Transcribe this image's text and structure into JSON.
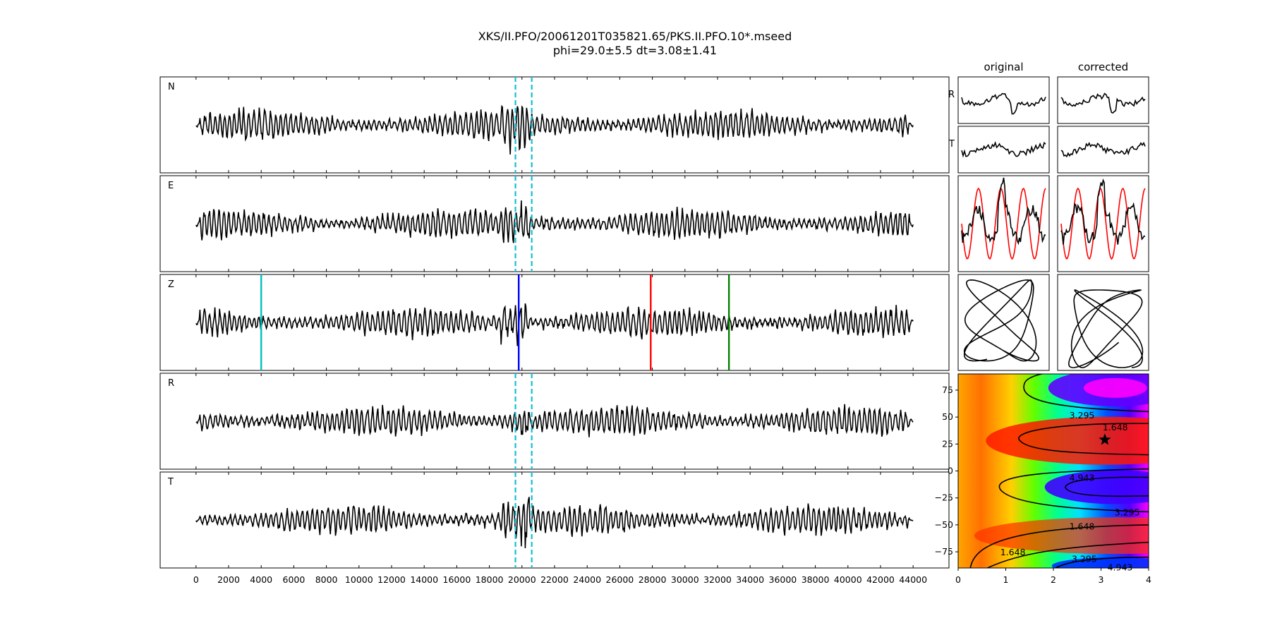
{
  "title_line1": "XKS/II.PFO/20061201T035821.65/PKS.II.PFO.10*.mseed",
  "title_line2": "phi=29.0±5.5 dt=3.08±1.41",
  "chart_data": [
    {
      "type": "line",
      "panel": "traces",
      "series_labels": [
        "N",
        "E",
        "Z",
        "R",
        "T"
      ],
      "x_ticks": [
        0,
        2000,
        4000,
        6000,
        8000,
        10000,
        12000,
        14000,
        16000,
        18000,
        20000,
        22000,
        24000,
        26000,
        28000,
        30000,
        32000,
        34000,
        36000,
        38000,
        40000,
        42000,
        44000
      ],
      "xlim": [
        -2200,
        46200
      ],
      "signal_range": [
        0,
        44000
      ],
      "window_lines": {
        "color": "#17becf",
        "style": "dashed",
        "x": [
          19600,
          20600
        ],
        "panels": [
          "N",
          "E",
          "R",
          "T"
        ]
      },
      "phase_markers": [
        {
          "x": 4000,
          "color": "#00bfbf"
        },
        {
          "x": 19800,
          "color": "#0000ff"
        },
        {
          "x": 27900,
          "color": "#ff0000"
        },
        {
          "x": 32700,
          "color": "#008000"
        }
      ],
      "trace_color": "#000000"
    },
    {
      "type": "line",
      "panel": "particle-motion",
      "column_titles": [
        "original",
        "corrected"
      ],
      "row_labels": [
        "R",
        "T"
      ],
      "colors": {
        "primary": "#000000",
        "overlay": "#ff0000"
      }
    },
    {
      "type": "heatmap",
      "panel": "error-surface",
      "x_ticks": [
        0,
        1,
        2,
        3,
        4
      ],
      "y_ticks": [
        75,
        50,
        25,
        0,
        -25,
        -50,
        -75
      ],
      "xlim": [
        0,
        4
      ],
      "ylim": [
        -90,
        90
      ],
      "colormap": "gist_rainbow",
      "contour_labels": [
        {
          "text": "3.295",
          "dt": 2.6,
          "phi": 52
        },
        {
          "text": "1.648",
          "dt": 3.3,
          "phi": 41
        },
        {
          "text": "4.943",
          "dt": 2.6,
          "phi": -6
        },
        {
          "text": "3.295",
          "dt": 3.55,
          "phi": -38
        },
        {
          "text": "1.648",
          "dt": 2.6,
          "phi": -51
        },
        {
          "text": "1.648",
          "dt": 1.15,
          "phi": -75
        },
        {
          "text": "3.295",
          "dt": 2.65,
          "phi": -81
        },
        {
          "text": "4.943",
          "dt": 3.4,
          "phi": -89
        }
      ],
      "best_fit": {
        "dt": 3.08,
        "phi": 29.0,
        "marker": "star"
      }
    }
  ]
}
